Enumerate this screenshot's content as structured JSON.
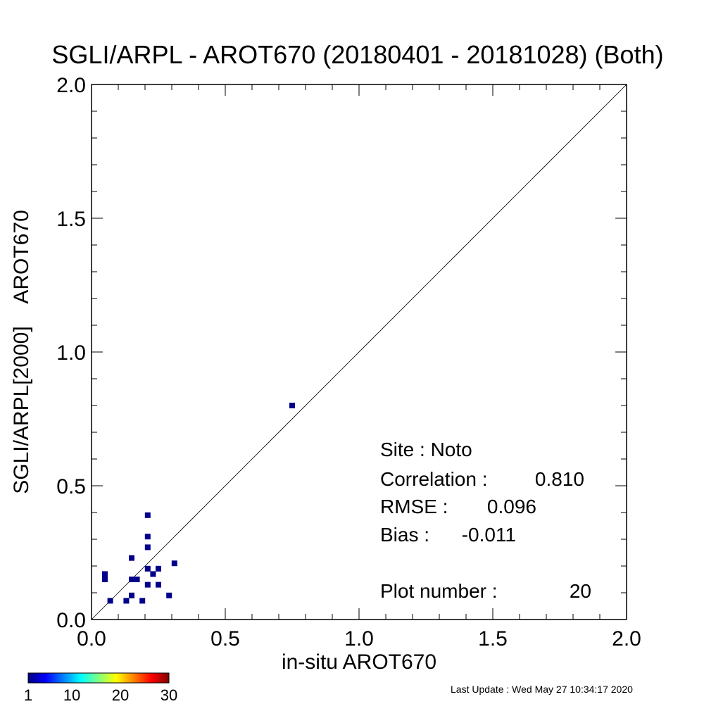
{
  "chart_data": {
    "type": "scatter",
    "title": "SGLI/ARPL - AROT670 (20180401 - 20181028) (Both)",
    "xlabel": "in-situ AROT670",
    "ylabel": "SGLI/ARPL[2000]    AROT670",
    "xlim": [
      0.0,
      2.0
    ],
    "ylim": [
      0.0,
      2.0
    ],
    "x_ticks": [
      "0.0",
      "0.5",
      "1.0",
      "1.5",
      "2.0"
    ],
    "y_ticks": [
      "0.0",
      "0.5",
      "1.0",
      "1.5",
      "2.0"
    ],
    "grid": false,
    "reference_line": "1:1",
    "points": [
      {
        "x": 0.05,
        "y": 0.15
      },
      {
        "x": 0.05,
        "y": 0.17
      },
      {
        "x": 0.07,
        "y": 0.07
      },
      {
        "x": 0.13,
        "y": 0.07
      },
      {
        "x": 0.15,
        "y": 0.23
      },
      {
        "x": 0.15,
        "y": 0.15
      },
      {
        "x": 0.15,
        "y": 0.09
      },
      {
        "x": 0.17,
        "y": 0.15
      },
      {
        "x": 0.19,
        "y": 0.07
      },
      {
        "x": 0.21,
        "y": 0.39
      },
      {
        "x": 0.21,
        "y": 0.31
      },
      {
        "x": 0.21,
        "y": 0.27
      },
      {
        "x": 0.21,
        "y": 0.19
      },
      {
        "x": 0.21,
        "y": 0.13
      },
      {
        "x": 0.23,
        "y": 0.17
      },
      {
        "x": 0.25,
        "y": 0.19
      },
      {
        "x": 0.25,
        "y": 0.13
      },
      {
        "x": 0.29,
        "y": 0.09
      },
      {
        "x": 0.31,
        "y": 0.21
      },
      {
        "x": 0.75,
        "y": 0.8
      }
    ],
    "point_color": "#00008b",
    "stats": [
      {
        "label": "Site : Noto",
        "value": ""
      },
      {
        "label": "Correlation :",
        "value": "0.810"
      },
      {
        "label": "RMSE :",
        "value": "0.096"
      },
      {
        "label": "Bias :",
        "value": "-0.011"
      }
    ],
    "plot_number": {
      "label": "Plot number :",
      "value": "20"
    },
    "colorbar": {
      "ticks": [
        "1",
        "10",
        "20",
        "30"
      ],
      "tick_values": [
        1,
        10,
        20,
        30
      ],
      "range": [
        1,
        30
      ],
      "colors": [
        "#000080",
        "#0000ff",
        "#0080ff",
        "#00ffff",
        "#80ff80",
        "#ffff00",
        "#ff8000",
        "#ff0000",
        "#800000"
      ]
    },
    "last_update": "Last Update : Wed May 27 10:34:17 2020"
  }
}
